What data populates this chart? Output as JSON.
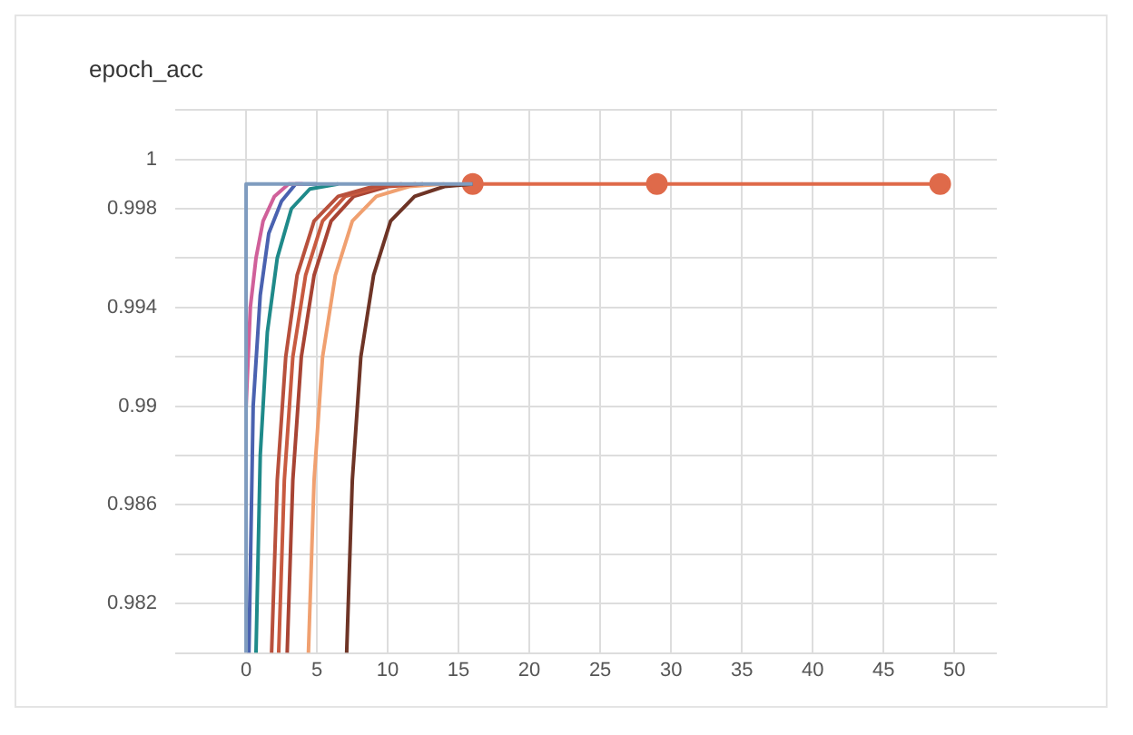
{
  "chart_data": {
    "type": "line",
    "title": "epoch_acc",
    "xlim": [
      -5,
      53
    ],
    "ylim": [
      0.98,
      1.002
    ],
    "xticks": [
      0,
      5,
      10,
      15,
      20,
      25,
      30,
      35,
      40,
      45,
      50
    ],
    "yticks": [
      {
        "value": 0.98,
        "label": null
      },
      0.982,
      {
        "value": 0.984,
        "label": null
      },
      0.986,
      {
        "value": 0.988,
        "label": null
      },
      0.99,
      {
        "value": 0.992,
        "label": null
      },
      0.994,
      {
        "value": 0.996,
        "label": null
      },
      0.998,
      1,
      {
        "value": 1.002,
        "label": null
      }
    ],
    "grid": true,
    "legend": false,
    "marker": "none",
    "series": [
      {
        "color": "#7f9cbf",
        "x": [
          0,
          0,
          16
        ],
        "values": [
          0.98,
          0.999,
          0.999
        ]
      },
      {
        "color": "#d0609a",
        "x": [
          0,
          0.3,
          0.7,
          1.2,
          2,
          3,
          4
        ],
        "values": [
          0.99,
          0.994,
          0.996,
          0.9975,
          0.9985,
          0.999,
          0.999
        ]
      },
      {
        "color": "#4a62b0",
        "x": [
          0.2,
          0.5,
          1,
          1.6,
          2.5,
          3.5,
          5
        ],
        "values": [
          0.98,
          0.99,
          0.9945,
          0.997,
          0.9983,
          0.999,
          0.999
        ]
      },
      {
        "color": "#1f8a8a",
        "x": [
          0.7,
          1,
          1.5,
          2.2,
          3.2,
          4.5,
          6.5
        ],
        "values": [
          0.98,
          0.988,
          0.993,
          0.996,
          0.998,
          0.9988,
          0.999
        ]
      },
      {
        "color": "#b8503c",
        "x": [
          1.8,
          2.2,
          2.8,
          3.6,
          4.8,
          6.5,
          9,
          11
        ],
        "values": [
          0.98,
          0.987,
          0.992,
          0.9953,
          0.9975,
          0.9985,
          0.9989,
          0.999
        ]
      },
      {
        "color": "#c85a40",
        "x": [
          2.3,
          2.7,
          3.3,
          4.2,
          5.4,
          7,
          9.5,
          12
        ],
        "values": [
          0.98,
          0.987,
          0.992,
          0.9953,
          0.9975,
          0.9985,
          0.9989,
          0.999
        ]
      },
      {
        "color": "#a84434",
        "x": [
          2.9,
          3.3,
          3.9,
          4.8,
          6,
          7.6,
          10,
          12.5
        ],
        "values": [
          0.98,
          0.987,
          0.992,
          0.9953,
          0.9975,
          0.9985,
          0.9989,
          0.999
        ]
      },
      {
        "color": "#f0a070",
        "x": [
          4.4,
          4.8,
          5.4,
          6.3,
          7.5,
          9.2,
          11.5,
          14
        ],
        "values": [
          0.98,
          0.987,
          0.992,
          0.9953,
          0.9975,
          0.9985,
          0.9989,
          0.999
        ]
      },
      {
        "color": "#6e3426",
        "x": [
          7.1,
          7.5,
          8.1,
          9,
          10.2,
          11.9,
          14,
          16
        ],
        "values": [
          0.98,
          0.987,
          0.992,
          0.9953,
          0.9975,
          0.9985,
          0.9989,
          0.999
        ]
      },
      {
        "color": "#df6a4a",
        "marker": "circle",
        "x": [
          16,
          29,
          49
        ],
        "values": [
          0.999,
          0.999,
          0.999
        ]
      }
    ]
  }
}
